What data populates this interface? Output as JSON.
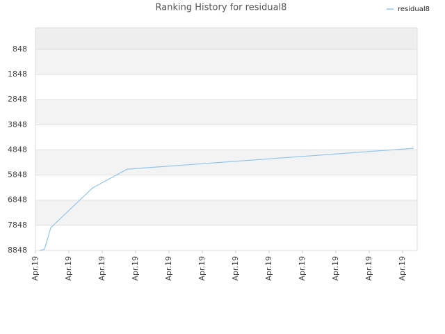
{
  "chart_data": {
    "type": "line",
    "title": "Ranking History for residual8",
    "x": [
      0.125,
      0.27,
      0.46,
      1.71,
      2.75,
      11.33
    ],
    "xlim": [
      0,
      11.44
    ],
    "xticks": [
      {
        "value": 0,
        "label": "Apr.19"
      },
      {
        "value": 1,
        "label": "Apr.19"
      },
      {
        "value": 2,
        "label": "Apr.19"
      },
      {
        "value": 3,
        "label": "Apr.19"
      },
      {
        "value": 4,
        "label": "Apr.19"
      },
      {
        "value": 5,
        "label": "Apr.19"
      },
      {
        "value": 6,
        "label": "Apr.19"
      },
      {
        "value": 7,
        "label": "Apr.19"
      },
      {
        "value": 8,
        "label": "Apr.19"
      },
      {
        "value": 9,
        "label": "Apr.19"
      },
      {
        "value": 10,
        "label": "Apr.19"
      },
      {
        "value": 11,
        "label": "Apr.19"
      }
    ],
    "series": [
      {
        "name": "residual8",
        "color": "#92c5ec",
        "values": [
          8848,
          8800,
          7940,
          6360,
          5613,
          4782
        ]
      }
    ],
    "ylim": [
      8848,
      -10
    ],
    "yticks": [
      848,
      1848,
      2848,
      3848,
      4848,
      5848,
      6848,
      7848,
      8848
    ],
    "grid": true
  }
}
